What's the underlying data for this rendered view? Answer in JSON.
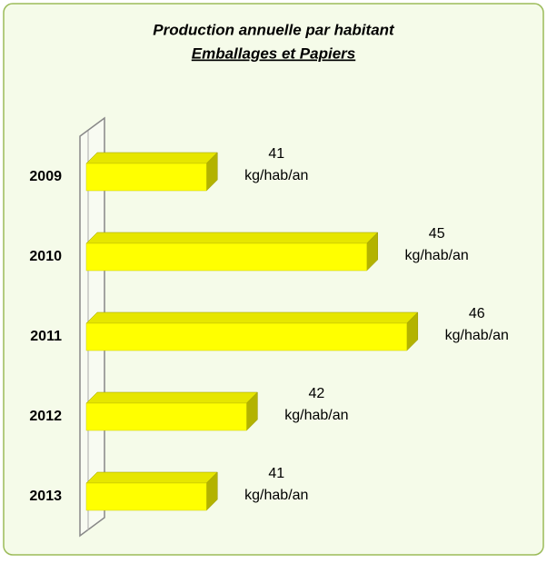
{
  "chart_data": {
    "type": "bar3d_h",
    "title": "Production annuelle par habitant",
    "subtitle": "Emballages et Papiers",
    "categories": [
      "2009",
      "2010",
      "2011",
      "2012",
      "2013"
    ],
    "values": [
      41,
      45,
      46,
      42,
      41
    ],
    "value_labels": [
      "41 kg/hab/an",
      "45 kg/hab/an",
      "46 kg/hab/an",
      "42 kg/hab/an",
      "41 kg/hab/an"
    ],
    "color": "#ffff00",
    "xlim": [
      38,
      48
    ]
  }
}
